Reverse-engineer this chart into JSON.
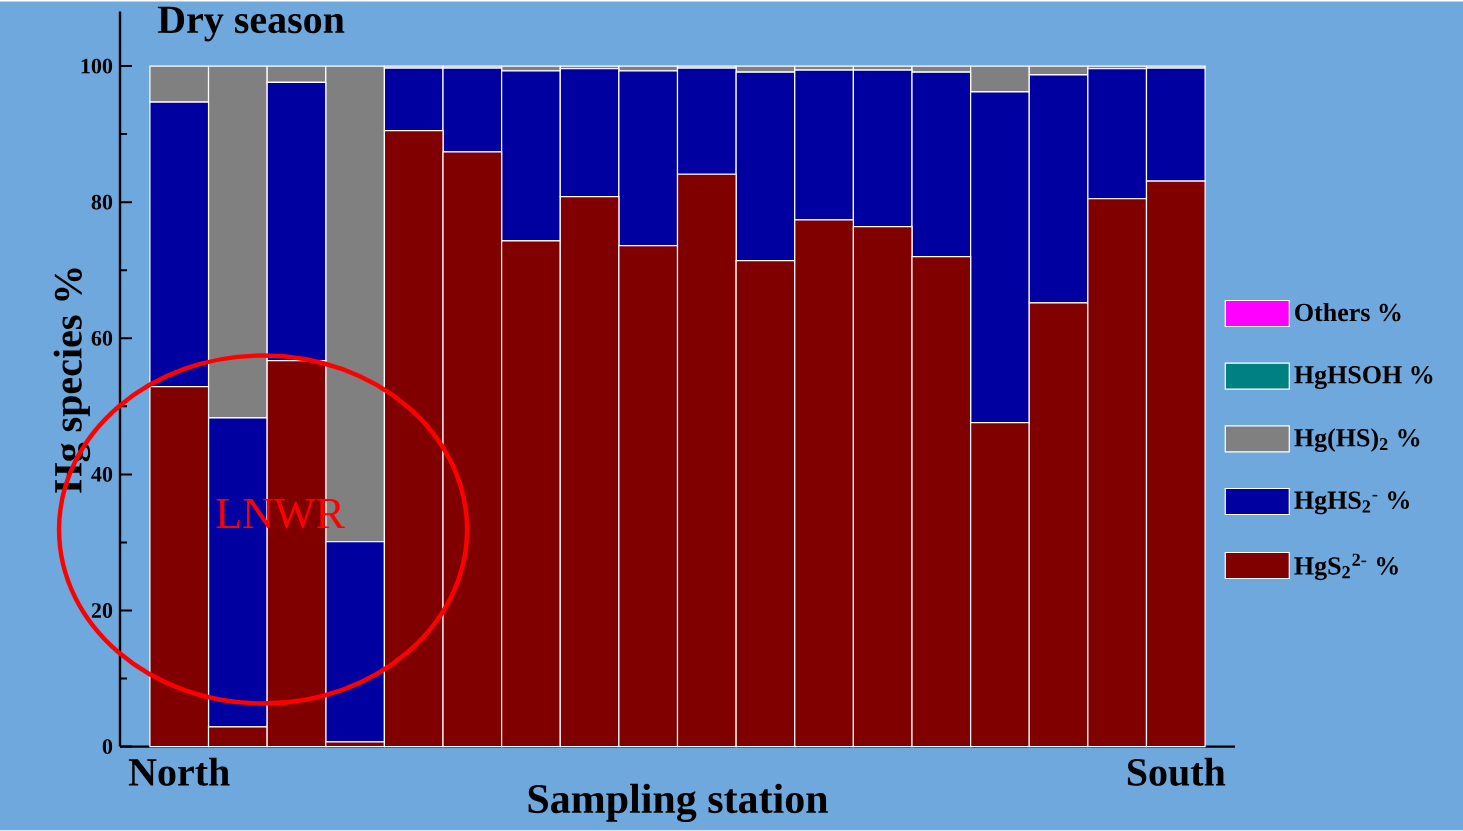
{
  "chart_data": {
    "type": "bar",
    "stacked": true,
    "title": "Dry season",
    "xlabel": "Sampling station",
    "ylabel": "Hg species %",
    "categories": [
      "North",
      null,
      null,
      null,
      null,
      null,
      null,
      null,
      null,
      null,
      null,
      null,
      null,
      null,
      null,
      null,
      null,
      "South"
    ],
    "series": [
      {
        "name": "HgS$_{2}$$^{2-}$ %",
        "color": "#800000",
        "values": [
          52.9,
          2.9,
          56.7,
          0.7,
          90.5,
          87.4,
          74.3,
          80.8,
          73.6,
          84.1,
          71.4,
          77.4,
          76.4,
          72.0,
          47.6,
          65.2,
          80.5,
          83.1
        ]
      },
      {
        "name": "HgHS$_{2}$$^{-}$ %",
        "color": "#0000a0",
        "values": [
          41.8,
          45.4,
          40.9,
          29.4,
          9.2,
          12.3,
          25.0,
          18.8,
          25.7,
          15.6,
          27.7,
          22.0,
          23.0,
          27.1,
          48.6,
          33.5,
          19.1,
          16.6
        ]
      },
      {
        "name": "Hg(HS)$_{2}$ %",
        "color": "#808080",
        "values": [
          5.3,
          51.7,
          2.4,
          69.9,
          0.3,
          0.3,
          0.7,
          0.4,
          0.7,
          0.3,
          0.9,
          0.6,
          0.6,
          0.9,
          3.8,
          1.3,
          0.4,
          0.3
        ]
      },
      {
        "name": "HgHSOH %",
        "color": "#008080",
        "values": [
          0,
          0,
          0,
          0,
          0,
          0,
          0,
          0,
          0,
          0,
          0,
          0,
          0,
          0,
          0,
          0,
          0,
          0
        ]
      },
      {
        "name": "Others %",
        "color": "#ff00ff",
        "values": [
          0,
          0,
          0,
          0,
          0,
          0,
          0,
          0,
          0,
          0,
          0,
          0,
          0,
          0,
          0,
          0,
          0,
          0
        ]
      }
    ],
    "ylim": [
      0,
      108
    ],
    "yticks": [
      0,
      20,
      40,
      60,
      80,
      100
    ],
    "legend": "right",
    "annotations": [
      "LNWR"
    ]
  }
}
